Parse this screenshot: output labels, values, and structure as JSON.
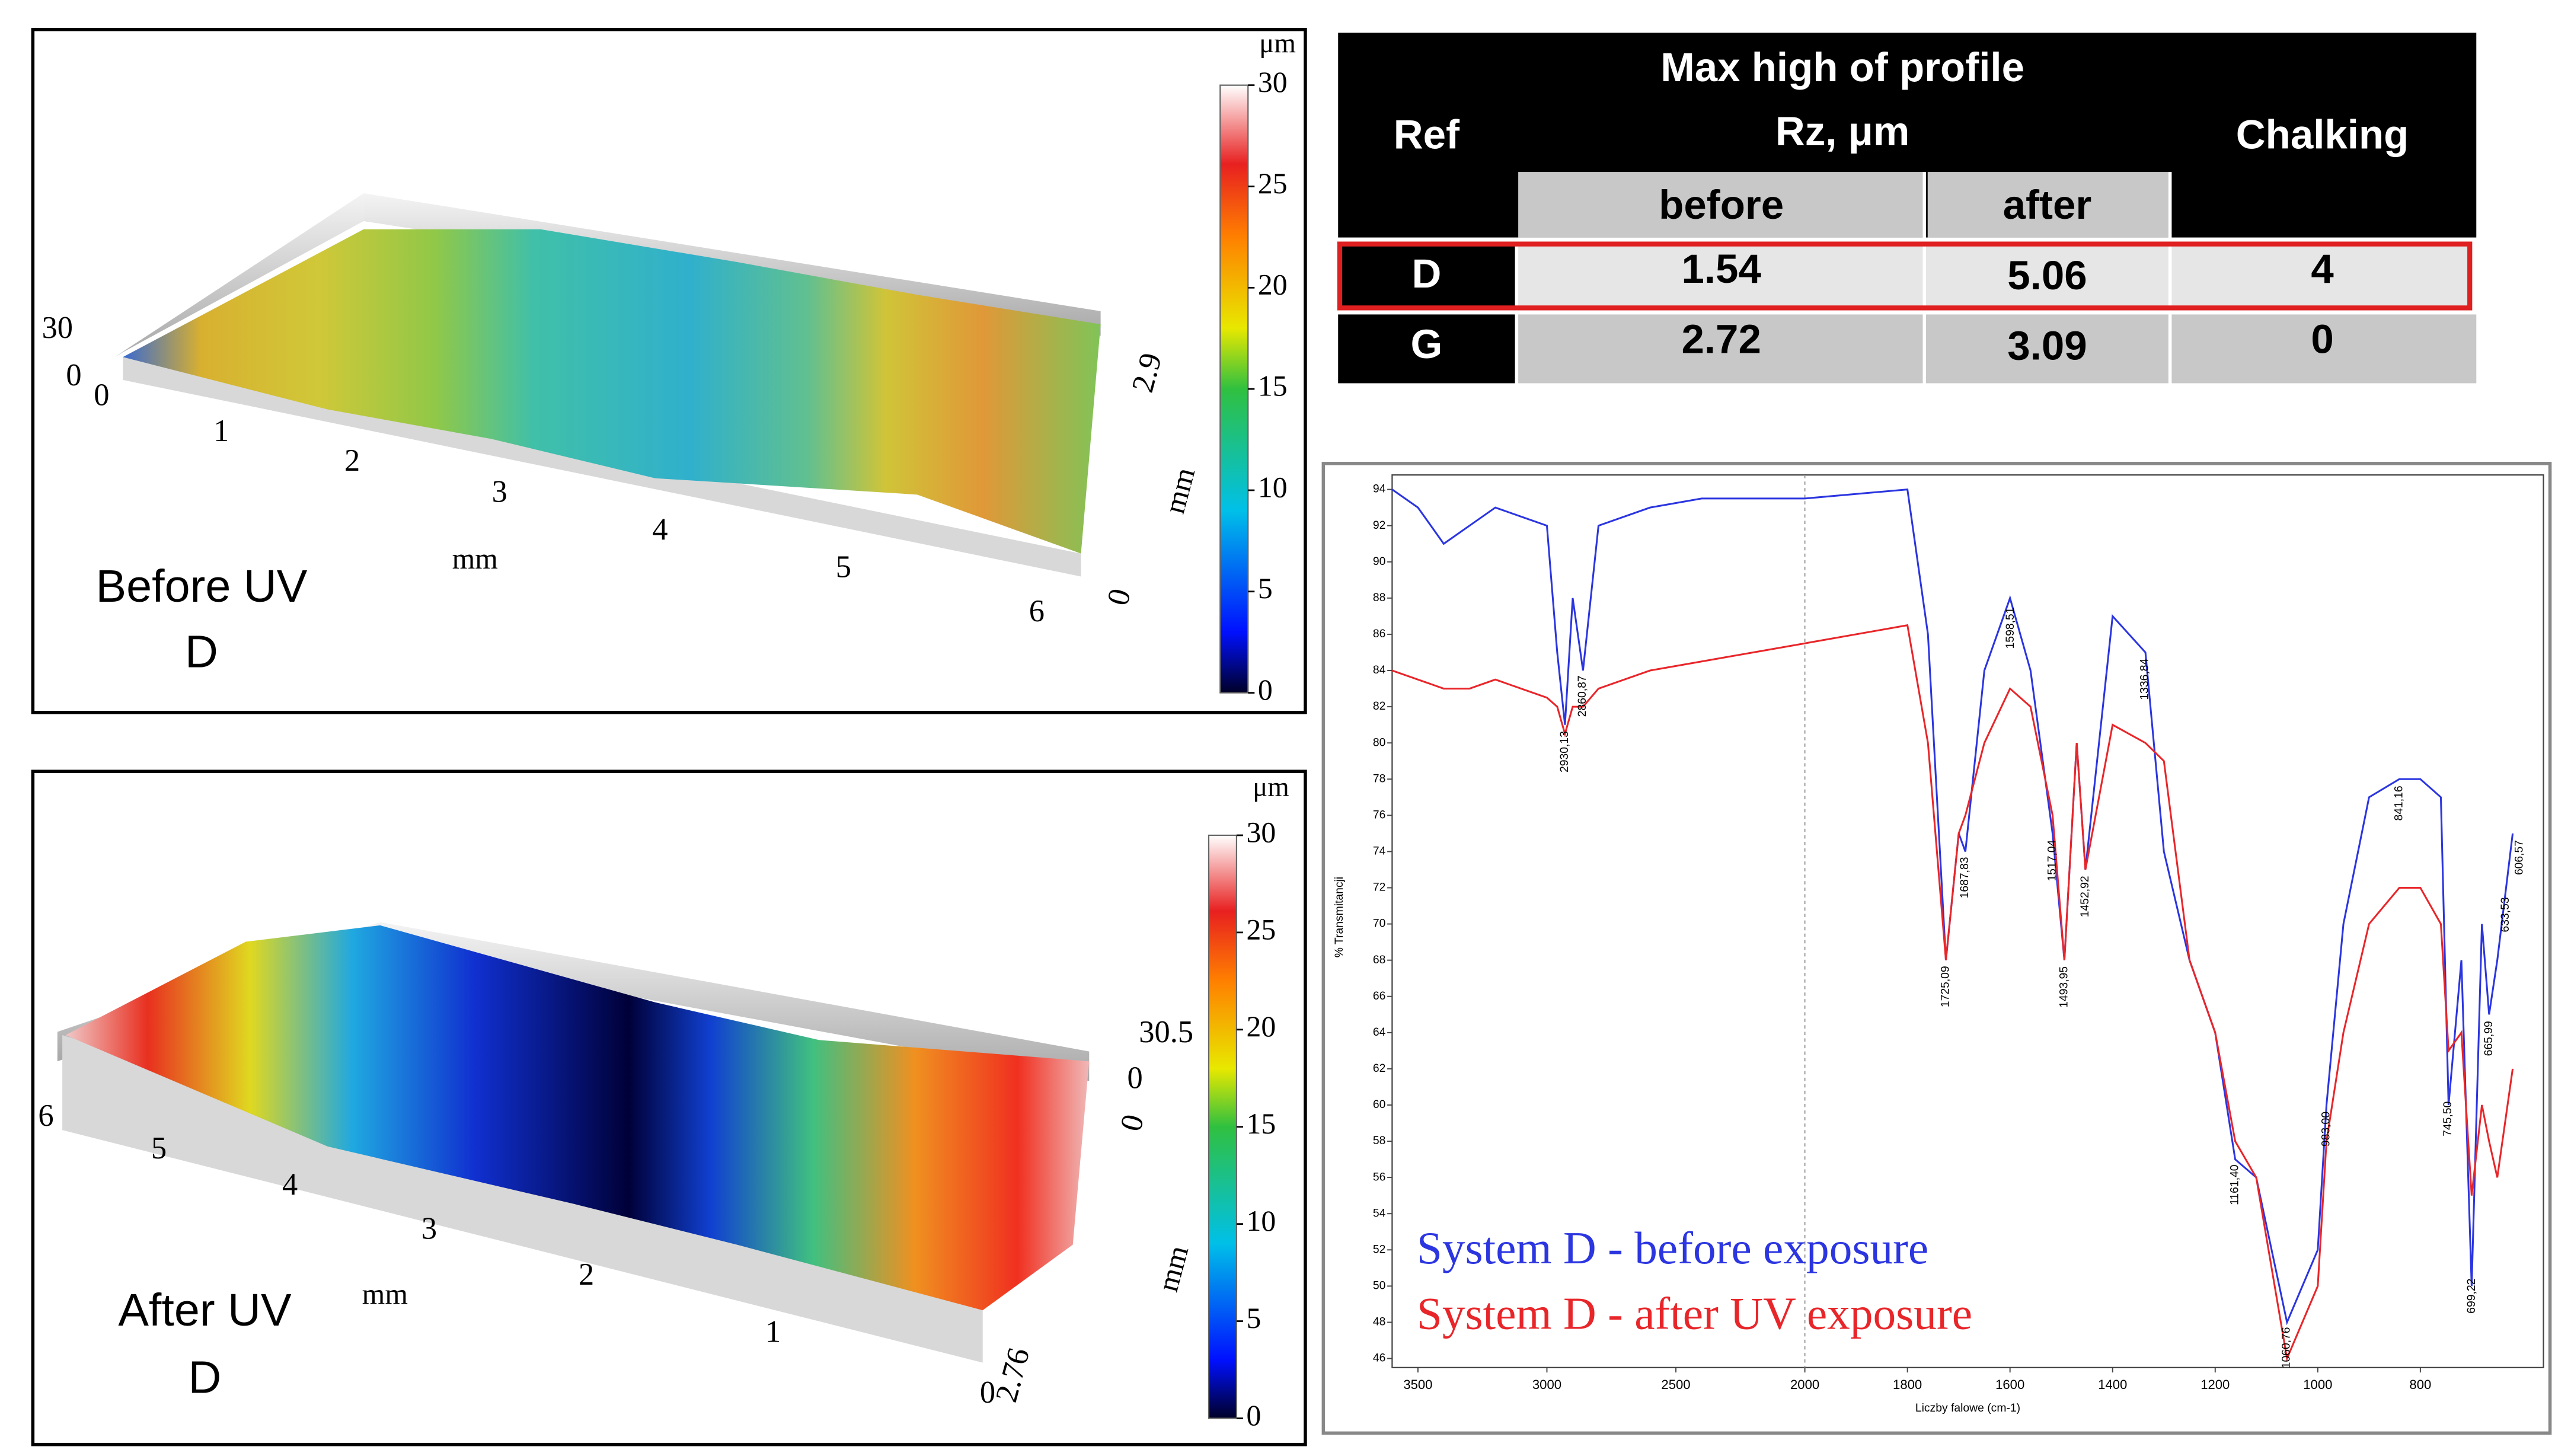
{
  "table": {
    "headers": {
      "ref": "Ref",
      "group": [
        "Max  high of profile",
        "Rz, μm"
      ],
      "before": "before",
      "after": "after",
      "chalking": "Chalking"
    },
    "rows": [
      [
        "D",
        "1.54",
        "5.06",
        "4"
      ],
      [
        "G",
        "2.72",
        "3.09",
        "0"
      ]
    ]
  },
  "surface_before": {
    "caption": [
      "Before UV",
      "D"
    ],
    "unit": "μm",
    "colorbar_lim": [
      0,
      30
    ],
    "colorbar_ticks": [
      0,
      5,
      10,
      15,
      20,
      25,
      30
    ],
    "x_label": "mm",
    "x_ticks": [
      0,
      1,
      2,
      3,
      4,
      5,
      6
    ],
    "y_label": "mm",
    "y_ticks": [
      0,
      2.9
    ],
    "z_ticks": [
      0,
      30
    ]
  },
  "surface_after": {
    "caption": [
      "After UV",
      "D"
    ],
    "unit": "μm",
    "colorbar_lim": [
      0,
      30
    ],
    "colorbar_ticks": [
      0,
      5,
      10,
      15,
      20,
      25,
      30
    ],
    "x_label": "mm",
    "x_ticks": [
      0,
      1,
      2,
      3,
      4,
      5,
      6
    ],
    "y_label": "mm",
    "y_ticks": [
      0,
      2.76
    ],
    "z_ticks": [
      0,
      30.5
    ]
  },
  "chart_data": {
    "type": "line",
    "x_label": "Liczby falowe (cm-1)",
    "y_label": "% Transmitancji",
    "x": [
      3600,
      3500,
      3400,
      3300,
      3200,
      3100,
      3000,
      2960,
      2930,
      2900,
      2860,
      2800,
      2600,
      2400,
      2200,
      2000,
      1800,
      1760,
      1725,
      1700,
      1687,
      1650,
      1600,
      1560,
      1517,
      1494,
      1470,
      1453,
      1400,
      1336,
      1300,
      1250,
      1200,
      1161,
      1120,
      1060,
      1000,
      983,
      950,
      900,
      841,
      800,
      760,
      745,
      720,
      700,
      680,
      666,
      650,
      620
    ],
    "series": [
      {
        "name": "System D - before exposure",
        "color": "#2b35e0",
        "values": [
          94,
          93,
          91,
          92,
          93,
          92.5,
          92,
          85,
          81,
          88,
          84,
          92,
          93,
          93.5,
          93.5,
          93.5,
          94,
          86,
          68,
          75,
          74,
          84,
          88,
          84,
          75,
          68,
          80,
          73,
          87,
          85,
          74,
          68,
          64,
          57,
          56,
          48,
          52,
          60,
          70,
          77,
          78,
          78,
          77,
          60,
          68,
          50,
          70,
          65,
          68,
          75
        ]
      },
      {
        "name": "System D - after UV exposure",
        "color": "#e8262a",
        "values": [
          84,
          83.5,
          83,
          83,
          83.5,
          83,
          82.5,
          82,
          80.5,
          82,
          82,
          83,
          84,
          84.5,
          85,
          85.5,
          86.5,
          80,
          68,
          75,
          76,
          80,
          83,
          82,
          76,
          68,
          80,
          73,
          81,
          80,
          79,
          68,
          64,
          58,
          56,
          46,
          50,
          58,
          64,
          70,
          72,
          72,
          70,
          63,
          64,
          55,
          60,
          58,
          56,
          62
        ]
      }
    ],
    "xlim": [
      3600,
      560
    ],
    "x_break": 2000,
    "xticks": [
      3500,
      3000,
      2500,
      2000,
      1800,
      1600,
      1400,
      1200,
      1000,
      800
    ],
    "ylim": [
      45.5,
      94.8
    ],
    "yticks": [
      46,
      48,
      50,
      52,
      54,
      56,
      58,
      60,
      62,
      64,
      66,
      68,
      70,
      72,
      74,
      76,
      78,
      80,
      82,
      84,
      86,
      88,
      90,
      92,
      94
    ],
    "annotations": [
      {
        "x": 2930.13,
        "label": "2930,13"
      },
      {
        "x": 2860.87,
        "label": "2860,87"
      },
      {
        "x": 1725.09,
        "label": "1725,09"
      },
      {
        "x": 1687.83,
        "label": "1687,83"
      },
      {
        "x": 1598.51,
        "label": "1598,51"
      },
      {
        "x": 1517.04,
        "label": "1517,04"
      },
      {
        "x": 1493.95,
        "label": "1493,95"
      },
      {
        "x": 1452.92,
        "label": "1452,92"
      },
      {
        "x": 1336.84,
        "label": "1336,84"
      },
      {
        "x": 1161.4,
        "label": "1161,40"
      },
      {
        "x": 1060.76,
        "label": "1060,76"
      },
      {
        "x": 983.0,
        "label": "983,00"
      },
      {
        "x": 841.16,
        "label": "841,16"
      },
      {
        "x": 745.5,
        "label": "745,50"
      },
      {
        "x": 699.22,
        "label": "699,22"
      },
      {
        "x": 665.99,
        "label": "665,99"
      },
      {
        "x": 633.53,
        "label": "633,53"
      },
      {
        "x": 606.57,
        "label": "606,57"
      }
    ]
  }
}
